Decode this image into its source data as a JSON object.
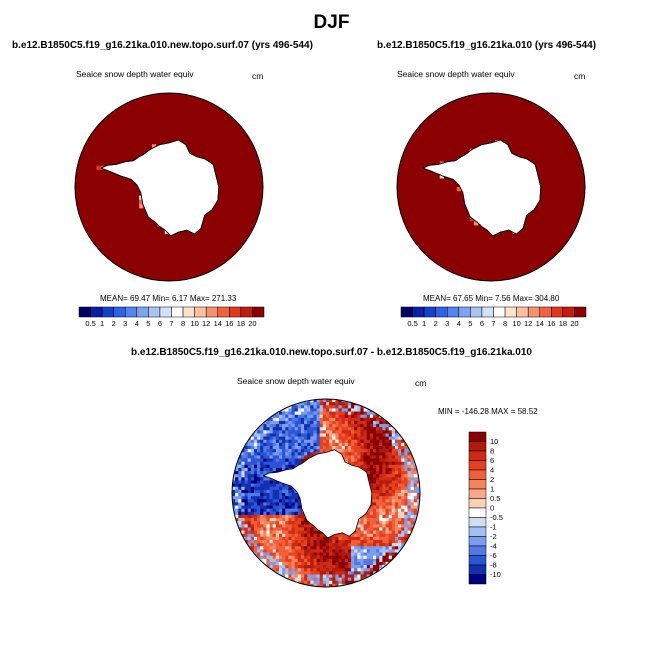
{
  "page": {
    "title": "DJF",
    "diff_title": "b.e12.B1850C5.f19_g16.21ka.010.new.topo.surf.07 - b.e12.B1850C5.f19_g16.21ka.010"
  },
  "chart_data": [
    {
      "type": "heatmap",
      "title": "b.e12.B1850C5.f19_g16.21ka.010.new.topo.surf.07 (yrs 496-544)",
      "variable": "Seaice snow depth water equiv",
      "units": "cm",
      "projection": "south polar stereographic",
      "stats": {
        "mean": "69.47",
        "min": "6.17",
        "max": "271.33"
      },
      "stats_text": "MEAN=  69.47  Min=    6.17  Max= 271.33",
      "colorbar": {
        "labels": [
          "0.5",
          "1",
          "2",
          "3",
          "4",
          "5",
          "6",
          "7",
          "8",
          "10",
          "12",
          "14",
          "16",
          "18",
          "20"
        ],
        "colors": [
          "#000066",
          "#0a1fa6",
          "#1440cc",
          "#2e62e6",
          "#5583ef",
          "#7ea3f3",
          "#a9c3f5",
          "#d2e1f7",
          "#ffffff",
          "#fde2cf",
          "#fcbf9f",
          "#f8926c",
          "#ef6341",
          "#df3a1e",
          "#c11c0d",
          "#8b0000"
        ]
      },
      "field_summary": "nearly all ice area saturated at >20 cm (dark red); sparse lighter cells along the coast"
    },
    {
      "type": "heatmap",
      "title": "b.e12.B1850C5.f19_g16.21ka.010 (yrs 496-544)",
      "variable": "Seaice snow depth water equiv",
      "units": "cm",
      "projection": "south polar stereographic",
      "stats": {
        "mean": "67.65",
        "min": "7.56",
        "max": "304.80"
      },
      "stats_text": "MEAN=  67.65  Min=    7.56  Max= 304.80",
      "colorbar": {
        "labels": [
          "0.5",
          "1",
          "2",
          "3",
          "4",
          "5",
          "6",
          "7",
          "8",
          "10",
          "12",
          "14",
          "16",
          "18",
          "20"
        ],
        "colors": [
          "#000066",
          "#0a1fa6",
          "#1440cc",
          "#2e62e6",
          "#5583ef",
          "#7ea3f3",
          "#a9c3f5",
          "#d2e1f7",
          "#ffffff",
          "#fde2cf",
          "#fcbf9f",
          "#f8926c",
          "#ef6341",
          "#df3a1e",
          "#c11c0d",
          "#8b0000"
        ]
      },
      "field_summary": "nearly all ice area saturated at >20 cm (dark red); sparse lighter cells along the coast"
    },
    {
      "type": "heatmap",
      "title": "b.e12.B1850C5.f19_g16.21ka.010.new.topo.surf.07 - b.e12.B1850C5.f19_g16.21ka.010",
      "variable": "Seaice snow depth water equiv",
      "units": "cm",
      "projection": "south polar stereographic",
      "stats": {
        "min": "-146.28",
        "max": "58.52"
      },
      "stats_text": "MIN = -146.28  MAX =   58.52",
      "colorbar": {
        "labels": [
          "10",
          "8",
          "6",
          "4",
          "2",
          "1",
          "0.5",
          "0",
          "-0.5",
          "-1",
          "-2",
          "-4",
          "-6",
          "-8",
          "-10"
        ],
        "colors": [
          "#8b0000",
          "#b01b0b",
          "#cf2a12",
          "#e6401d",
          "#f0603a",
          "#f3845c",
          "#f6a887",
          "#fad0b8",
          "#ffffff",
          "#cfdef7",
          "#a4c0f3",
          "#7a9eee",
          "#5079e6",
          "#2a55d6",
          "#1030b0",
          "#000080"
        ]
      },
      "field_summary": "positive anomalies (red) over most of ice ring; strong negative anomalies (blue) in Weddell Sea sector and near the Antarctic Peninsula"
    }
  ]
}
